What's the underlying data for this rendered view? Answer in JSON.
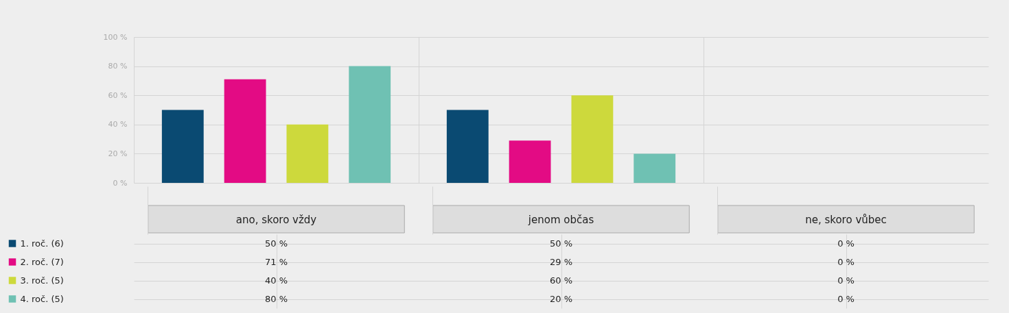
{
  "chart_data": {
    "type": "bar",
    "categories": [
      "ano, skoro vždy",
      "jenom občas",
      "ne, skoro vůbec"
    ],
    "series": [
      {
        "name": "1. roč. (6)",
        "color": "#0a4a72",
        "values": [
          50,
          50,
          0
        ],
        "value_labels": [
          "50 %",
          "50 %",
          "0 %"
        ]
      },
      {
        "name": "2. roč. (7)",
        "color": "#e30b84",
        "values": [
          71,
          29,
          0
        ],
        "value_labels": [
          "71 %",
          "29 %",
          "0 %"
        ]
      },
      {
        "name": "3. roč. (5)",
        "color": "#cdd93c",
        "values": [
          40,
          60,
          0
        ],
        "value_labels": [
          "40 %",
          "60 %",
          "0 %"
        ]
      },
      {
        "name": "4. roč. (5)",
        "color": "#6fc1b3",
        "values": [
          80,
          20,
          0
        ],
        "value_labels": [
          "80 %",
          "20 %",
          "0 %"
        ]
      }
    ],
    "ylim": [
      0,
      100
    ],
    "yticks": [
      {
        "value": 0,
        "label": "0 %"
      },
      {
        "value": 20,
        "label": "20 %"
      },
      {
        "value": 40,
        "label": "40 %"
      },
      {
        "value": 60,
        "label": "60 %"
      },
      {
        "value": 80,
        "label": "80 %"
      },
      {
        "value": 100,
        "label": "100 %"
      }
    ],
    "grid": true,
    "legend": "bottom left"
  }
}
